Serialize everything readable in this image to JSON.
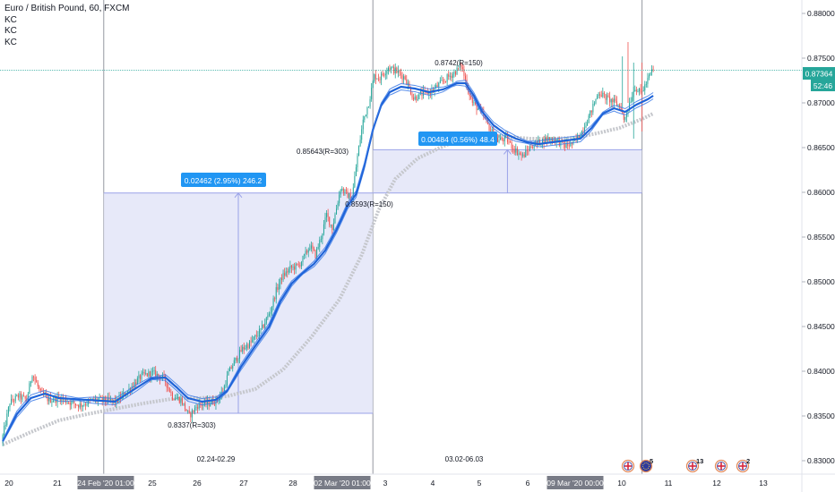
{
  "header": {
    "symbol": "Euro / British Pound, 60, FXCM",
    "indicators": [
      "KC",
      "KC",
      "KC"
    ]
  },
  "colors": {
    "up": "#26a69a",
    "down": "#ef5350",
    "ma_blue": "#1e63d8",
    "ma_grey": "#c5c7cc",
    "range_fill": "#dfe1f7",
    "range_border": "#9aa2e8",
    "label_bg": "#2196f3",
    "price_line": "#26a69a",
    "session_line": "#9598a1",
    "time_highlight": "#787b86"
  },
  "price_axis": {
    "ticks": [
      "0.88000",
      "0.87500",
      "0.87000",
      "0.86500",
      "0.86000",
      "0.85500",
      "0.85000",
      "0.84500",
      "0.84000",
      "0.83500",
      "0.83000"
    ],
    "current_price": "0.87364",
    "countdown": "52:46"
  },
  "time_axis": {
    "labels": [
      "20",
      "21",
      "24 Feb '20   01:00",
      "25",
      "26",
      "27",
      "28",
      "02 Mar '20   01:00",
      "3",
      "4",
      "5",
      "6",
      "09 Mar '20   00:00",
      "10",
      "11",
      "12",
      "13"
    ],
    "highlighted": [
      "24 Feb '20   01:00",
      "02 Mar '20   01:00",
      "09 Mar '20   00:00"
    ]
  },
  "annotations": {
    "range1_label": "0.02462 (2.95%) 246.2",
    "range2_label": "0.00484 (0.56%) 48.4",
    "pivot_low1": "0.8337(R=303)",
    "pivot_high1": "0.85643(R=303)",
    "pivot_low2": "0.8593(R=150)",
    "pivot_high2": "0.8742(R=150)",
    "period1": "02.24-02.29",
    "period2": "03.02-06.03"
  },
  "events": [
    {
      "icon": "gbp-flag-icon",
      "badge": ""
    },
    {
      "icon": "eur-flag-icon",
      "badge": "5"
    },
    {
      "icon": "gbp-flag-icon",
      "badge": "13"
    },
    {
      "icon": "gbp-flag-icon",
      "badge": ""
    },
    {
      "icon": "gbp-flag-icon",
      "badge": "2"
    }
  ],
  "chart_data": {
    "type": "candlestick",
    "ylim": [
      0.8285,
      0.8815
    ],
    "x_unit": "hours since 20 Feb 2020 00:00",
    "x_domain": [
      -2,
      570
    ],
    "ohlc_anchors": [
      [
        0,
        0.832
      ],
      [
        6,
        0.8365
      ],
      [
        12,
        0.8372
      ],
      [
        18,
        0.8368
      ],
      [
        22,
        0.8398
      ],
      [
        28,
        0.8375
      ],
      [
        34,
        0.8368
      ],
      [
        42,
        0.837
      ],
      [
        48,
        0.8366
      ],
      [
        56,
        0.8362
      ],
      [
        66,
        0.8368
      ],
      [
        72,
        0.8368
      ],
      [
        82,
        0.8366
      ],
      [
        90,
        0.8378
      ],
      [
        100,
        0.8395
      ],
      [
        108,
        0.8398
      ],
      [
        116,
        0.8392
      ],
      [
        122,
        0.8372
      ],
      [
        128,
        0.8368
      ],
      [
        134,
        0.835
      ],
      [
        140,
        0.8362
      ],
      [
        148,
        0.8364
      ],
      [
        154,
        0.8368
      ],
      [
        158,
        0.8378
      ],
      [
        162,
        0.8398
      ],
      [
        166,
        0.841
      ],
      [
        172,
        0.8425
      ],
      [
        178,
        0.8432
      ],
      [
        182,
        0.844
      ],
      [
        186,
        0.8448
      ],
      [
        192,
        0.8468
      ],
      [
        196,
        0.849
      ],
      [
        200,
        0.8505
      ],
      [
        206,
        0.8515
      ],
      [
        212,
        0.8518
      ],
      [
        216,
        0.8528
      ],
      [
        220,
        0.854
      ],
      [
        224,
        0.853
      ],
      [
        228,
        0.855
      ],
      [
        232,
        0.8575
      ],
      [
        236,
        0.856
      ],
      [
        242,
        0.8605
      ],
      [
        246,
        0.8598
      ],
      [
        250,
        0.8593
      ],
      [
        254,
        0.864
      ],
      [
        258,
        0.868
      ],
      [
        262,
        0.87
      ],
      [
        266,
        0.873
      ],
      [
        270,
        0.8728
      ],
      [
        276,
        0.874
      ],
      [
        282,
        0.8735
      ],
      [
        288,
        0.8728
      ],
      [
        294,
        0.8705
      ],
      [
        300,
        0.871
      ],
      [
        306,
        0.8712
      ],
      [
        312,
        0.872
      ],
      [
        318,
        0.8728
      ],
      [
        324,
        0.8735
      ],
      [
        328,
        0.8742
      ],
      [
        332,
        0.872
      ],
      [
        336,
        0.87
      ],
      [
        342,
        0.869
      ],
      [
        348,
        0.8672
      ],
      [
        354,
        0.8658
      ],
      [
        360,
        0.866
      ],
      [
        366,
        0.8648
      ],
      [
        372,
        0.864
      ],
      [
        378,
        0.8652
      ],
      [
        384,
        0.8656
      ],
      [
        390,
        0.866
      ],
      [
        396,
        0.8658
      ],
      [
        402,
        0.8652
      ],
      [
        408,
        0.8655
      ],
      [
        414,
        0.8668
      ],
      [
        420,
        0.8688
      ],
      [
        426,
        0.8712
      ],
      [
        432,
        0.8705
      ],
      [
        438,
        0.87
      ],
      [
        442,
        0.8695
      ],
      [
        444,
        0.868
      ],
      [
        448,
        0.87
      ],
      [
        452,
        0.8718
      ],
      [
        456,
        0.871
      ],
      [
        460,
        0.8722
      ],
      [
        464,
        0.8736
      ]
    ],
    "series": [
      {
        "name": "KC",
        "values": [
          [
            0,
            0.8322
          ],
          [
            10,
            0.8352
          ],
          [
            20,
            0.837
          ],
          [
            30,
            0.8375
          ],
          [
            40,
            0.837
          ],
          [
            60,
            0.8368
          ],
          [
            80,
            0.8366
          ],
          [
            96,
            0.8382
          ],
          [
            106,
            0.8392
          ],
          [
            116,
            0.8393
          ],
          [
            124,
            0.8382
          ],
          [
            132,
            0.837
          ],
          [
            142,
            0.8366
          ],
          [
            152,
            0.8368
          ],
          [
            160,
            0.8378
          ],
          [
            170,
            0.8405
          ],
          [
            180,
            0.8428
          ],
          [
            190,
            0.845
          ],
          [
            198,
            0.8478
          ],
          [
            206,
            0.8498
          ],
          [
            214,
            0.851
          ],
          [
            222,
            0.852
          ],
          [
            230,
            0.8535
          ],
          [
            238,
            0.8558
          ],
          [
            246,
            0.8585
          ],
          [
            252,
            0.8598
          ],
          [
            258,
            0.863
          ],
          [
            264,
            0.867
          ],
          [
            270,
            0.8698
          ],
          [
            276,
            0.8712
          ],
          [
            284,
            0.8718
          ],
          [
            294,
            0.8716
          ],
          [
            304,
            0.8712
          ],
          [
            314,
            0.8715
          ],
          [
            324,
            0.8722
          ],
          [
            330,
            0.8722
          ],
          [
            336,
            0.8708
          ],
          [
            342,
            0.869
          ],
          [
            350,
            0.8675
          ],
          [
            358,
            0.8666
          ],
          [
            366,
            0.866
          ],
          [
            374,
            0.8656
          ],
          [
            382,
            0.8654
          ],
          [
            392,
            0.8656
          ],
          [
            402,
            0.8658
          ],
          [
            412,
            0.866
          ],
          [
            420,
            0.8672
          ],
          [
            428,
            0.8688
          ],
          [
            436,
            0.8694
          ],
          [
            444,
            0.869
          ],
          [
            452,
            0.8698
          ],
          [
            460,
            0.8704
          ],
          [
            464,
            0.8708
          ]
        ]
      },
      {
        "name": "KC",
        "values": [
          [
            0,
            0.8318
          ],
          [
            20,
            0.8332
          ],
          [
            40,
            0.8345
          ],
          [
            60,
            0.8352
          ],
          [
            80,
            0.8358
          ],
          [
            100,
            0.8364
          ],
          [
            120,
            0.8369
          ],
          [
            140,
            0.837
          ],
          [
            160,
            0.8372
          ],
          [
            180,
            0.838
          ],
          [
            200,
            0.8402
          ],
          [
            220,
            0.8438
          ],
          [
            240,
            0.848
          ],
          [
            256,
            0.853
          ],
          [
            268,
            0.858
          ],
          [
            280,
            0.8615
          ],
          [
            296,
            0.8638
          ],
          [
            312,
            0.865
          ],
          [
            328,
            0.866
          ],
          [
            344,
            0.8665
          ],
          [
            360,
            0.8662
          ],
          [
            376,
            0.866
          ],
          [
            392,
            0.866
          ],
          [
            408,
            0.8661
          ],
          [
            424,
            0.8666
          ],
          [
            440,
            0.8672
          ],
          [
            456,
            0.8682
          ],
          [
            464,
            0.8688
          ]
        ]
      }
    ],
    "measure_ranges": [
      {
        "from_x": 72,
        "to_x": 264,
        "low": 0.8353,
        "high": 0.85992,
        "label": "0.02462 (2.95%) 246.2"
      },
      {
        "from_x": 264,
        "to_x": 456,
        "low": 0.85992,
        "high": 0.86476,
        "label": "0.00484 (0.56%) 48.4"
      }
    ],
    "horizontal_line": 0.87364
  }
}
